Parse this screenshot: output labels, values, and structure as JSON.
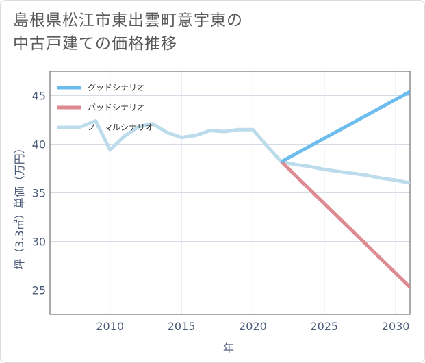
{
  "title": {
    "line1": "島根県松江市東出雲町意宇東の",
    "line2": "中古戸建ての価格推移"
  },
  "chart_data": {
    "type": "line",
    "xlabel": "年",
    "ylabel": "坪（3.3㎡）単価（万円）",
    "xlim": [
      2005.8,
      2031
    ],
    "ylim": [
      22.5,
      47.5
    ],
    "xticks": [
      2010,
      2015,
      2020,
      2025,
      2030
    ],
    "yticks": [
      25,
      30,
      35,
      40,
      45
    ],
    "grid": true,
    "legend_position": "top-left",
    "series": [
      {
        "name": "グッドシナリオ",
        "color": "#6cbcee",
        "x": [
          2022,
          2031
        ],
        "y": [
          38.2,
          45.4
        ]
      },
      {
        "name": "バッドシナリオ",
        "color": "#dd8a90",
        "x": [
          2022,
          2031
        ],
        "y": [
          38.2,
          25.3
        ]
      },
      {
        "name": "ノーマルシナリオ",
        "color": "#bcdcec",
        "x": [
          2008,
          2009,
          2010,
          2011,
          2012,
          2013,
          2014,
          2015,
          2016,
          2017,
          2018,
          2019,
          2020,
          2021,
          2022,
          2023,
          2024,
          2025,
          2026,
          2027,
          2028,
          2029,
          2030,
          2031
        ],
        "y": [
          41.8,
          42.4,
          39.4,
          40.8,
          41.8,
          42.1,
          41.2,
          40.7,
          40.9,
          41.4,
          41.3,
          41.5,
          41.5,
          39.8,
          38.2,
          37.9,
          37.7,
          37.4,
          37.2,
          37.0,
          36.8,
          36.5,
          36.3,
          36.0
        ]
      }
    ]
  }
}
